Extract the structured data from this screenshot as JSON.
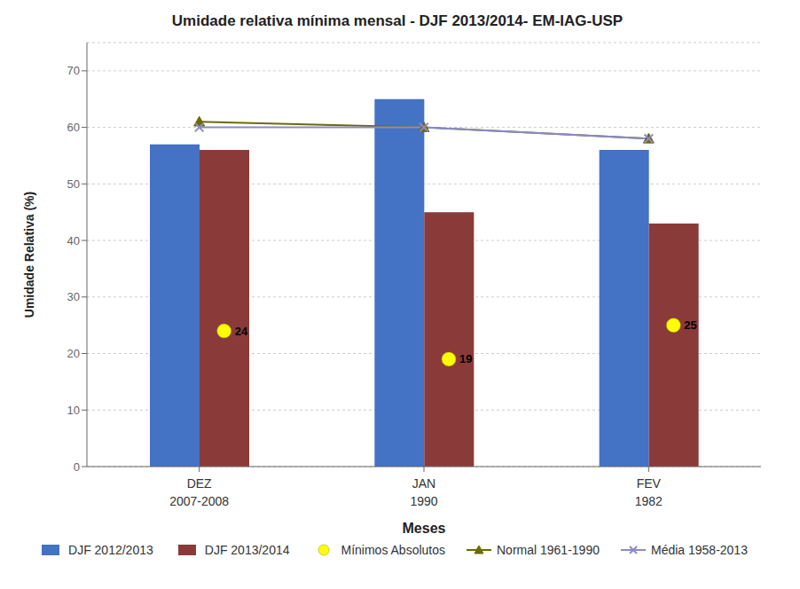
{
  "chart_data": {
    "type": "bar",
    "title": "Umidade relativa mínima mensal - DJF 2013/2014- EM-IAG-USP",
    "xlabel": "Meses",
    "ylabel": "Umidade Relativa (%)",
    "categories": [
      "DEZ",
      "JAN",
      "FEV"
    ],
    "annotations": [
      "2007-2008",
      "1990",
      "1982"
    ],
    "series": [
      {
        "name": "DJF 2012/2013",
        "type": "bar",
        "color": "#4472C4",
        "values": [
          57,
          65,
          56
        ]
      },
      {
        "name": "DJF 2013/2014",
        "type": "bar",
        "color": "#8B3A3A",
        "values": [
          56,
          45,
          43
        ]
      },
      {
        "name": "Mínimos Absolutos",
        "type": "scatter",
        "color": "#FFFF00",
        "marker": "circle",
        "data_labels": true,
        "values": [
          24,
          19,
          25
        ]
      },
      {
        "name": "Normal 1961-1990",
        "type": "line",
        "color": "#6B6B00",
        "marker": "triangle",
        "values": [
          61,
          60,
          58
        ]
      },
      {
        "name": "Média 1958-2013",
        "type": "line",
        "color": "#8B8BC8",
        "marker": "x",
        "values": [
          60,
          60,
          58
        ]
      }
    ],
    "ylim": [
      0,
      75
    ],
    "yticks": [
      0,
      10,
      20,
      30,
      40,
      50,
      60,
      70
    ],
    "grid": true,
    "legend": "bottom"
  }
}
